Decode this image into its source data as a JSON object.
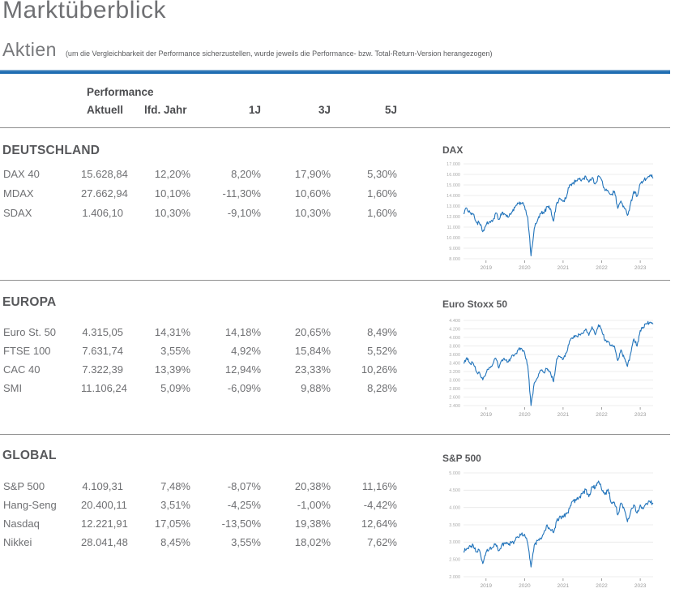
{
  "page": {
    "title": "Marktüberblick",
    "section_title": "Aktien",
    "section_note": "(um die Vergleichbarkeit der Performance sicherzustellen, wurde jeweils die Performance- bzw. Total-Return-Version herangezogen)",
    "accent_color": "#1e6db2"
  },
  "table": {
    "header_group": "Performance",
    "columns": [
      "Aktuell",
      "lfd. Jahr",
      "1J",
      "3J",
      "5J"
    ],
    "sections": [
      {
        "title": "DEUTSCHLAND",
        "rows": [
          [
            "DAX 40",
            "15.628,84",
            "12,20%",
            "8,20%",
            "17,90%",
            "5,30%"
          ],
          [
            "MDAX",
            "27.662,94",
            "10,10%",
            "-11,30%",
            "10,60%",
            "1,60%"
          ],
          [
            "SDAX",
            "1.406,10",
            "10,30%",
            "-9,10%",
            "10,30%",
            "1,60%"
          ]
        ]
      },
      {
        "title": "EUROPA",
        "rows": [
          [
            "Euro St. 50",
            "4.315,05",
            "14,31%",
            "14,18%",
            "20,65%",
            "8,49%"
          ],
          [
            "FTSE 100",
            "7.631,74",
            "3,55%",
            "4,92%",
            "15,84%",
            "5,52%"
          ],
          [
            "CAC 40",
            "7.322,39",
            "13,39%",
            "12,94%",
            "23,33%",
            "10,26%"
          ],
          [
            "SMI",
            "11.106,24",
            "5,09%",
            "-6,09%",
            "9,88%",
            "8,28%"
          ]
        ]
      },
      {
        "title": "GLOBAL",
        "rows": [
          [
            "S&P 500",
            "4.109,31",
            "7,48%",
            "-8,07%",
            "20,38%",
            "11,16%"
          ],
          [
            "Hang-Seng",
            "20.400,11",
            "3,51%",
            "-4,25%",
            "-1,00%",
            "-4,42%"
          ],
          [
            "Nasdaq",
            "12.221,91",
            "17,05%",
            "-13,50%",
            "19,38%",
            "12,64%"
          ],
          [
            "Nikkei",
            "28.041,48",
            "8,45%",
            "3,55%",
            "18,02%",
            "7,62%"
          ]
        ]
      }
    ]
  },
  "chart_data": [
    {
      "type": "line",
      "title": "DAX",
      "color": "#2274bb",
      "grid": true,
      "legend": "none",
      "x_unit": "month",
      "x_start": "2018-06",
      "x_end": "2023-05",
      "x_ticks": [
        "2019",
        "2020",
        "2021",
        "2022",
        "2023"
      ],
      "x_tick_month_index": [
        7,
        19,
        31,
        43,
        55
      ],
      "ylim": [
        8000,
        17000
      ],
      "y_step": 1000,
      "values": [
        12300,
        12800,
        12400,
        12250,
        11450,
        11350,
        10560,
        11170,
        11510,
        11520,
        12340,
        11730,
        12400,
        12190,
        11940,
        12430,
        12870,
        13240,
        13250,
        12980,
        11890,
        8280,
        10860,
        11590,
        12310,
        12310,
        12950,
        12760,
        11560,
        13290,
        13720,
        13430,
        13790,
        15010,
        15140,
        15420,
        15530,
        15540,
        15840,
        15260,
        15690,
        15100,
        15880,
        15470,
        14460,
        14410,
        14100,
        14390,
        12780,
        13480,
        12830,
        12110,
        13250,
        14400,
        13920,
        15130,
        15360,
        15630,
        15920,
        15628
      ]
    },
    {
      "type": "line",
      "title": "Euro Stoxx 50",
      "color": "#2274bb",
      "grid": true,
      "legend": "none",
      "x_unit": "month",
      "x_start": "2018-06",
      "x_end": "2023-05",
      "x_ticks": [
        "2019",
        "2020",
        "2021",
        "2022",
        "2023"
      ],
      "x_tick_month_index": [
        7,
        19,
        31,
        43,
        55
      ],
      "ylim": [
        2400,
        4400
      ],
      "y_step": 200,
      "values": [
        3395,
        3525,
        3393,
        3399,
        3197,
        3173,
        3001,
        3159,
        3298,
        3352,
        3515,
        3280,
        3474,
        3467,
        3427,
        3569,
        3604,
        3703,
        3745,
        3640,
        3329,
        2400,
        2928,
        3050,
        3234,
        3174,
        3273,
        3193,
        2958,
        3493,
        3553,
        3481,
        3636,
        3919,
        3974,
        4039,
        4064,
        4089,
        4196,
        4048,
        4251,
        4063,
        4298,
        4175,
        3924,
        3903,
        3803,
        3789,
        3455,
        3708,
        3517,
        3318,
        3618,
        3965,
        3794,
        4163,
        4238,
        4315,
        4359,
        4315
      ]
    },
    {
      "type": "line",
      "title": "S&P 500",
      "color": "#2274bb",
      "grid": true,
      "legend": "none",
      "x_unit": "month",
      "x_start": "2018-06",
      "x_end": "2023-05",
      "x_ticks": [
        "2019",
        "2020",
        "2021",
        "2022",
        "2023"
      ],
      "x_tick_month_index": [
        7,
        19,
        31,
        43,
        55
      ],
      "ylim": [
        2000,
        5000
      ],
      "y_step": 500,
      "values": [
        2718,
        2816,
        2902,
        2914,
        2712,
        2760,
        2380,
        2704,
        2784,
        2834,
        2946,
        2752,
        2942,
        2980,
        2926,
        2977,
        3038,
        3141,
        3231,
        3226,
        2954,
        2280,
        2912,
        3044,
        3100,
        3271,
        3500,
        3363,
        3270,
        3622,
        3756,
        3714,
        3811,
        3973,
        4181,
        4204,
        4298,
        4395,
        4523,
        4308,
        4605,
        4567,
        4766,
        4516,
        4374,
        4530,
        4132,
        4132,
        3785,
        4130,
        3955,
        3586,
        3872,
        4080,
        3840,
        4077,
        3970,
        4109,
        4169,
        4109
      ]
    }
  ]
}
